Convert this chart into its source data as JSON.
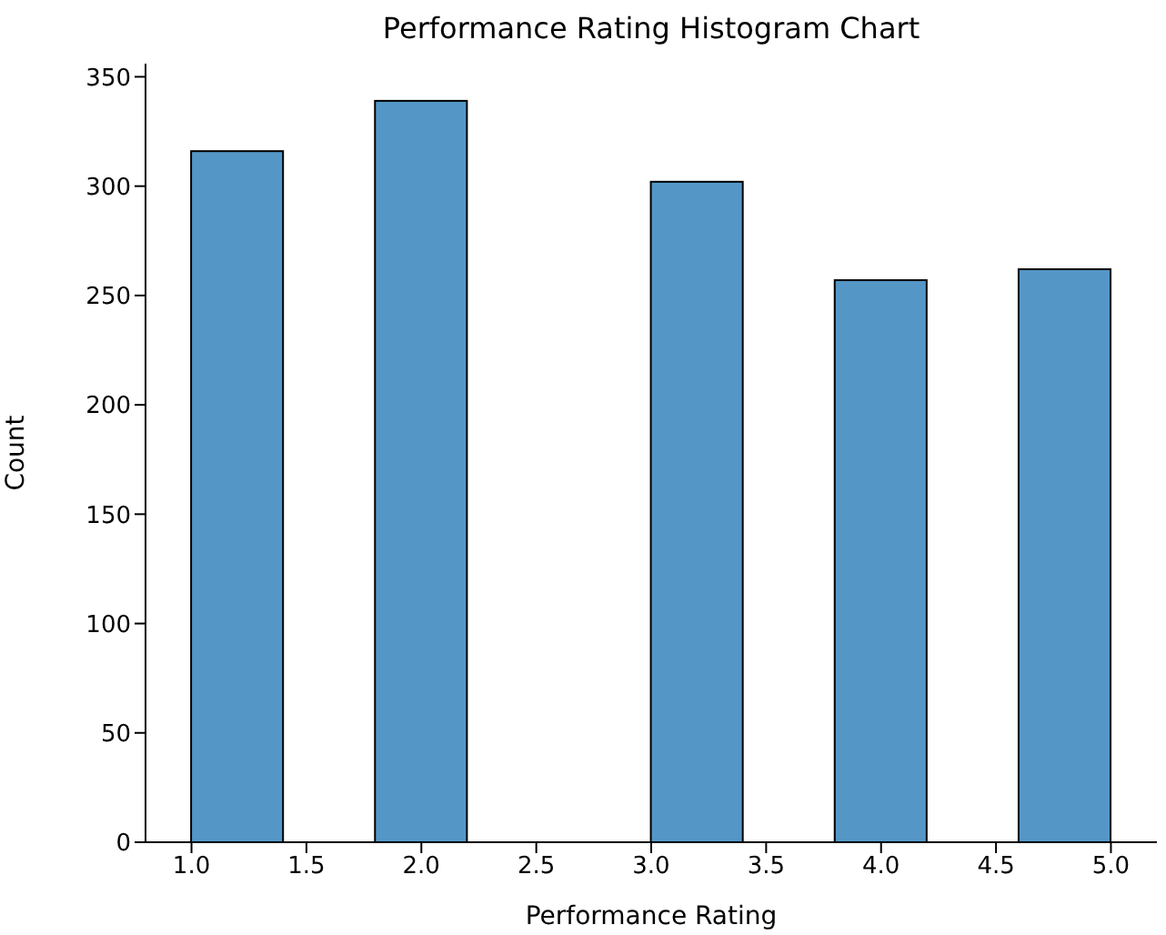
{
  "chart_data": {
    "type": "histogram",
    "title": "Performance Rating Histogram Chart",
    "xlabel": "Performance Rating",
    "ylabel": "Count",
    "bins": [
      1.0,
      1.4,
      1.8,
      2.2,
      2.6,
      3.0,
      3.4,
      3.8,
      4.2,
      4.6,
      5.0
    ],
    "values": [
      316,
      0,
      339,
      0,
      0,
      302,
      0,
      257,
      0,
      262
    ],
    "color": "#5497c7",
    "xlim": [
      0.8,
      5.2
    ],
    "xticks": [
      {
        "value": 1,
        "label": "1.0"
      },
      {
        "value": 1.5,
        "label": "1.5"
      },
      {
        "value": 2,
        "label": "2.0"
      },
      {
        "value": 2.5,
        "label": "2.5"
      },
      {
        "value": 3,
        "label": "3.0"
      },
      {
        "value": 3.5,
        "label": "3.5"
      },
      {
        "value": 4,
        "label": "4.0"
      },
      {
        "value": 4.5,
        "label": "4.5"
      },
      {
        "value": 5,
        "label": "5.0"
      }
    ],
    "ylim": [
      0,
      356
    ],
    "yticks": [
      0,
      50,
      100,
      150,
      200,
      250,
      300,
      350
    ]
  }
}
